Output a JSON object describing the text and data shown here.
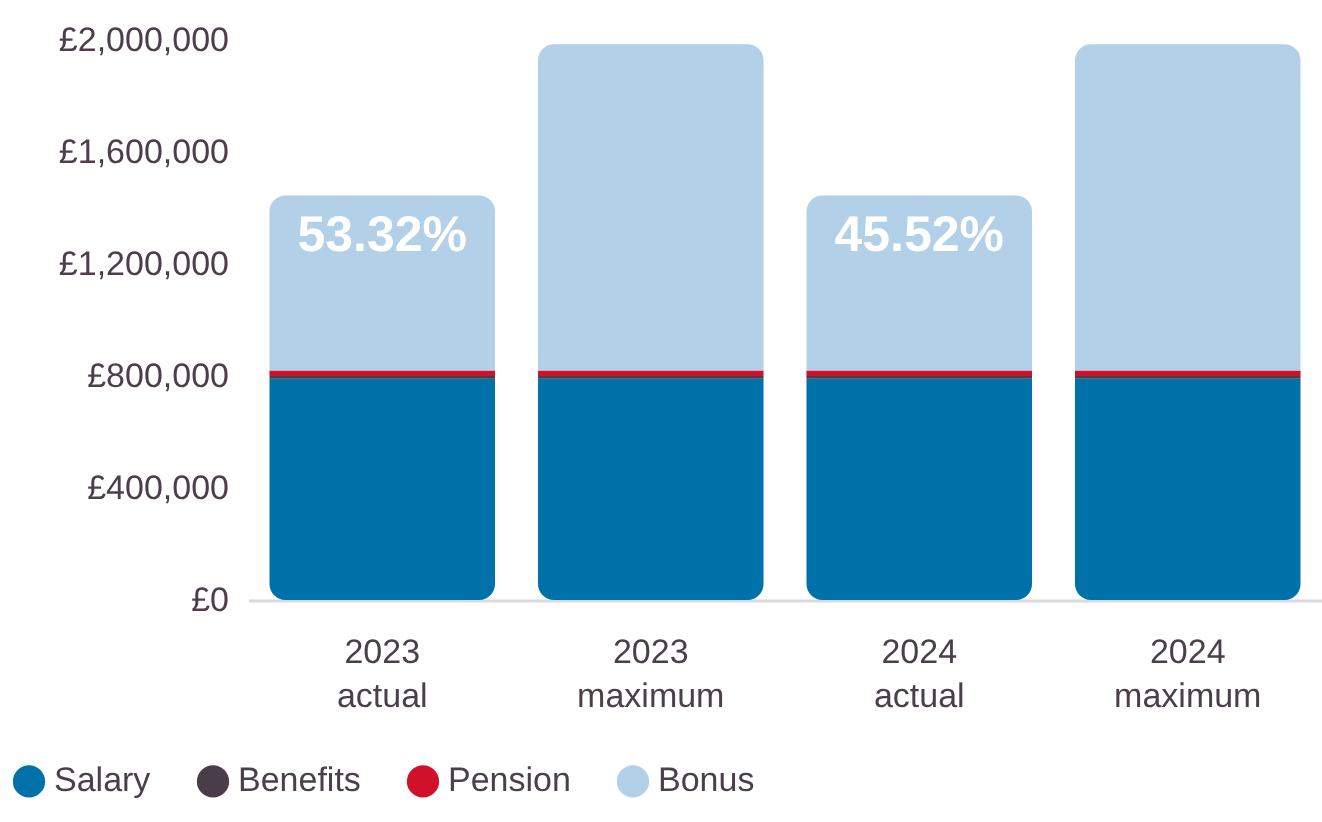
{
  "chart_data": {
    "type": "bar",
    "stacked": true,
    "categories": [
      "2023\nactual",
      "2023\nmaximum",
      "2024\nactual",
      "2024\nmaximum"
    ],
    "series": [
      {
        "name": "Salary",
        "color": "#0071a9",
        "values": [
          790000,
          790000,
          790000,
          790000
        ]
      },
      {
        "name": "Benefits",
        "color": "#4a3d4a",
        "values": [
          10000,
          10000,
          10000,
          10000
        ]
      },
      {
        "name": "Pension",
        "color": "#d0112b",
        "values": [
          20000,
          20000,
          20000,
          20000
        ]
      },
      {
        "name": "Bonus",
        "color": "#b2d0e7",
        "values": [
          625000,
          1165000,
          625000,
          1165000
        ]
      }
    ],
    "annotations": [
      {
        "text": "53.32%",
        "x": "2023\nactual",
        "y": 1445000
      },
      {
        "text": "45.52%",
        "x": "2024\nactual",
        "y": 1445000
      }
    ],
    "ylim": [
      0,
      2000000
    ],
    "yticks": [
      {
        "value": 0,
        "label": "£0"
      },
      {
        "value": 400000,
        "label": "£400,000"
      },
      {
        "value": 800000,
        "label": "£800,000"
      },
      {
        "value": 1200000,
        "label": "£1,200,000"
      },
      {
        "value": 1600000,
        "label": "£1,600,000"
      },
      {
        "value": 2000000,
        "label": "£2,000,000"
      }
    ],
    "grid": false,
    "legend": "bottom left"
  }
}
